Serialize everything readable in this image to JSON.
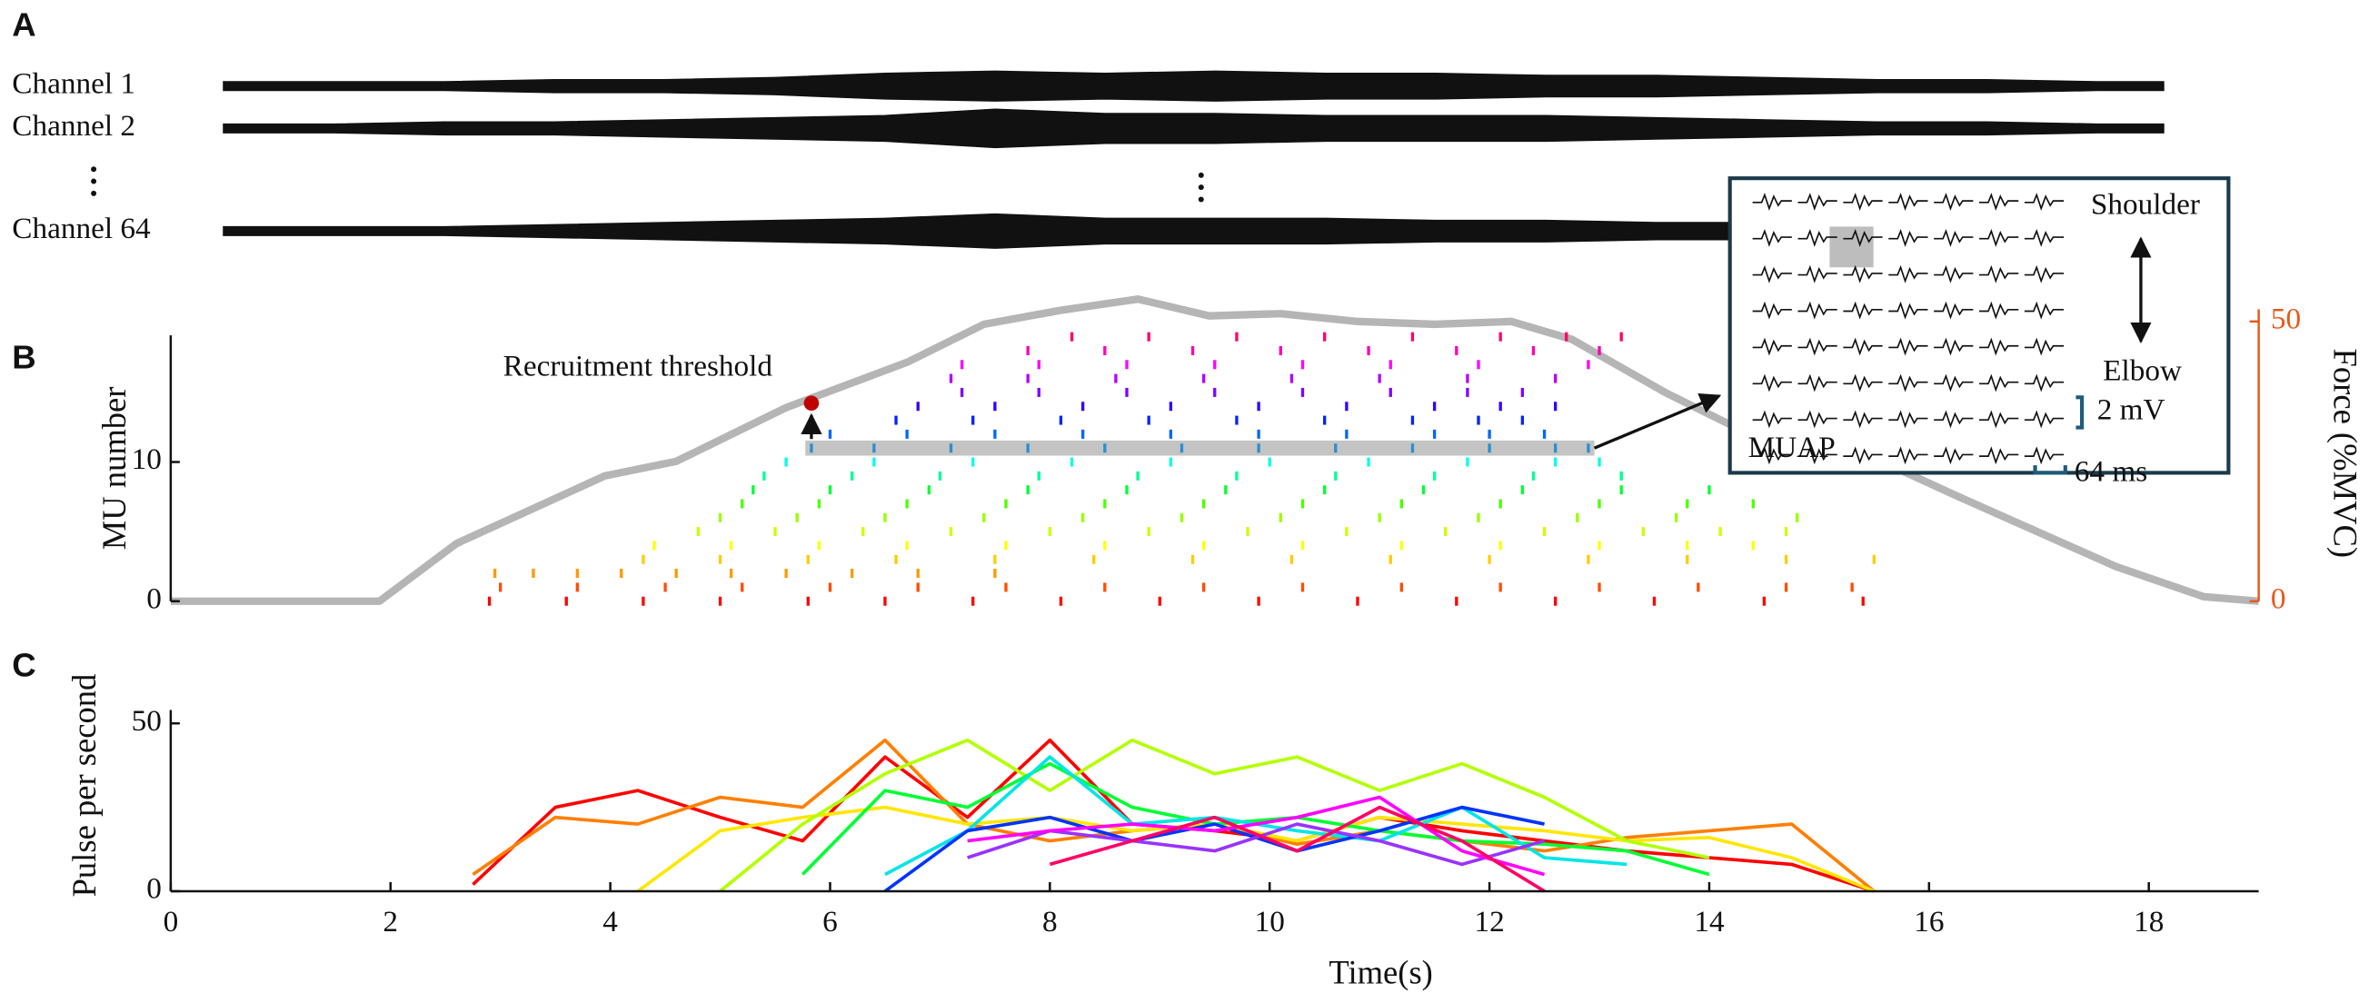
{
  "panel_labels": [
    "A",
    "B",
    "C"
  ],
  "chart_data": [
    {
      "type": "emg",
      "x": [
        0.5,
        1.5,
        2.5,
        3.5,
        4.5,
        5.5,
        6.5,
        7.5,
        8.5,
        9.5,
        10.5,
        11.5,
        12.5,
        13.5,
        14.5,
        15.5,
        16.5,
        17.5,
        18.1
      ],
      "channels": [
        {
          "name": "Channel 1",
          "envelope": [
            2,
            2,
            2,
            3,
            3,
            4,
            6,
            7,
            6,
            7,
            6,
            6,
            5,
            5,
            4,
            3,
            3,
            2,
            2
          ]
        },
        {
          "name": "Channel 2",
          "envelope": [
            2,
            2,
            3,
            3,
            4,
            5,
            6,
            9,
            7,
            7,
            6,
            6,
            6,
            5,
            4,
            3,
            3,
            2,
            2
          ]
        },
        {
          "name": "Channel 64",
          "envelope": [
            2,
            2,
            2,
            3,
            4,
            5,
            6,
            8,
            6,
            6,
            6,
            5,
            5,
            4,
            4,
            3,
            2,
            2,
            2
          ]
        }
      ]
    },
    {
      "type": "raster",
      "ylabel": "MU number",
      "y2label": "Force (%MVC)",
      "xlim": [
        0,
        19
      ],
      "ylim": [
        0,
        19.1
      ],
      "yticks": [
        0,
        10
      ],
      "y2lim": [
        0,
        54
      ],
      "y2ticks": [
        0,
        50
      ],
      "axis2_color": "#e8591a",
      "force": {
        "color": "#b5b5b5",
        "x": [
          0,
          1.9,
          2.6,
          3.95,
          4.6,
          5.6,
          6.7,
          7.4,
          8.1,
          8.8,
          9.45,
          10.1,
          10.8,
          11.5,
          12.2,
          12.75,
          13.6,
          14.3,
          15.4,
          16.3,
          17.7,
          18.5,
          19
        ],
        "values": [
          0,
          0,
          10.3,
          22.4,
          25,
          34.6,
          42.7,
          49.5,
          52,
          54,
          51,
          51.4,
          50,
          49.5,
          50,
          46.8,
          37.3,
          30.5,
          26.5,
          18.4,
          6.2,
          0.8,
          0
        ]
      },
      "annotation": "Recruitment threshold",
      "threshold": {
        "x": 5.83,
        "value": 35.4,
        "color": "#c00000"
      },
      "highlight_unit": 11,
      "units": [
        {
          "color": "#ff0000",
          "spikes": [
            2.9,
            3.6,
            4.3,
            5.0,
            5.8,
            6.5,
            7.3,
            8.1,
            9.0,
            9.9,
            10.8,
            11.7,
            12.6,
            13.5,
            14.5,
            15.4
          ]
        },
        {
          "color": "#ff4d00",
          "spikes": [
            3.0,
            3.7,
            4.5,
            5.2,
            6.0,
            6.8,
            7.6,
            8.5,
            9.4,
            10.3,
            11.2,
            12.1,
            13.0,
            13.9,
            14.7,
            15.3
          ]
        },
        {
          "color": "#ff9900",
          "spikes": [
            2.95,
            3.3,
            3.7,
            4.1,
            4.6,
            5.1,
            5.6,
            6.2,
            6.8,
            7.5
          ]
        },
        {
          "color": "#ffcc00",
          "spikes": [
            4.3,
            5.0,
            5.8,
            6.6,
            7.5,
            8.4,
            9.3,
            10.2,
            11.1,
            12.0,
            12.9,
            13.8,
            14.7,
            15.5
          ]
        },
        {
          "color": "#ffff00",
          "spikes": [
            4.4,
            5.1,
            5.9,
            6.7,
            7.6,
            8.5,
            9.4,
            10.3,
            11.2,
            12.1,
            13.0,
            13.8,
            14.4
          ]
        },
        {
          "color": "#ccff00",
          "spikes": [
            4.8,
            5.5,
            6.3,
            7.1,
            8.0,
            8.9,
            9.8,
            10.7,
            11.6,
            12.5,
            13.4,
            14.1,
            14.7
          ]
        },
        {
          "color": "#99ff00",
          "spikes": [
            5.0,
            5.7,
            6.5,
            7.4,
            8.3,
            9.2,
            10.1,
            11.0,
            11.9,
            12.8,
            13.7,
            14.8
          ]
        },
        {
          "color": "#4dff00",
          "spikes": [
            5.2,
            5.9,
            6.7,
            7.6,
            8.5,
            9.4,
            10.3,
            11.2,
            12.1,
            13.0,
            13.8,
            14.4
          ]
        },
        {
          "color": "#00ff33",
          "spikes": [
            5.3,
            6.0,
            6.9,
            7.8,
            8.7,
            9.6,
            10.5,
            11.4,
            12.3,
            13.2,
            14.0
          ]
        },
        {
          "color": "#00ff99",
          "spikes": [
            5.4,
            6.2,
            7.0,
            7.9,
            8.8,
            9.7,
            10.6,
            11.5,
            12.4,
            13.2
          ]
        },
        {
          "color": "#00ffe6",
          "spikes": [
            5.6,
            6.4,
            7.3,
            8.2,
            9.1,
            10.0,
            10.9,
            11.8,
            12.6,
            13.0
          ]
        },
        {
          "color": "#2a8fd0",
          "spikes": [
            5.83,
            6.4,
            7.1,
            7.8,
            8.5,
            9.2,
            9.9,
            10.6,
            11.3,
            12.0,
            12.6,
            12.9
          ]
        },
        {
          "color": "#0066ff",
          "spikes": [
            6.0,
            6.7,
            7.5,
            8.3,
            9.1,
            9.9,
            10.7,
            11.5,
            12.0,
            12.5
          ]
        },
        {
          "color": "#0022ff",
          "spikes": [
            6.6,
            7.3,
            8.1,
            8.9,
            9.7,
            10.5,
            11.3,
            11.9,
            12.3
          ]
        },
        {
          "color": "#3300ff",
          "spikes": [
            6.8,
            7.5,
            8.3,
            9.1,
            9.9,
            10.7,
            11.5,
            12.1,
            12.6
          ]
        },
        {
          "color": "#8000ff",
          "spikes": [
            7.2,
            7.9,
            8.7,
            9.5,
            10.3,
            11.1,
            11.8,
            12.3
          ]
        },
        {
          "color": "#b300ff",
          "spikes": [
            7.1,
            7.8,
            8.6,
            9.4,
            10.2,
            11.0,
            11.8,
            12.6
          ]
        },
        {
          "color": "#ff00ff",
          "spikes": [
            7.2,
            7.9,
            8.7,
            9.5,
            10.3,
            11.1,
            11.9,
            12.9
          ]
        },
        {
          "color": "#ff00b3",
          "spikes": [
            7.8,
            8.5,
            9.3,
            10.1,
            10.9,
            11.7,
            12.4,
            13.0
          ]
        },
        {
          "color": "#ff0066",
          "spikes": [
            8.2,
            8.9,
            9.7,
            10.5,
            11.3,
            12.1,
            12.7,
            13.2
          ]
        }
      ],
      "inset": {
        "top": "Shoulder",
        "bottom": "Elbow",
        "amplitude": "2 mV",
        "duration": "64 ms",
        "title": "MUAP"
      }
    },
    {
      "type": "line",
      "ylabel": "Pulse per second",
      "xlabel": "Time(s)",
      "xlim": [
        0,
        19
      ],
      "xticks": [
        0,
        2,
        4,
        6,
        8,
        10,
        12,
        14,
        16,
        18
      ],
      "ylim": [
        0,
        54
      ],
      "yticks": [
        0,
        50
      ],
      "x": [
        2.75,
        3.5,
        4.25,
        5,
        5.75,
        6.5,
        7.25,
        8,
        8.75,
        9.5,
        10.25,
        11,
        11.75,
        12.5,
        13.25,
        14,
        14.75,
        15.5
      ],
      "series": [
        {
          "color": "#ff0000",
          "values": [
            2,
            25,
            30,
            22,
            15,
            40,
            22,
            45,
            20,
            18,
            15,
            22,
            18,
            15,
            12,
            10,
            8,
            0
          ]
        },
        {
          "color": "#ff7f00",
          "values": [
            5,
            22,
            20,
            28,
            25,
            45,
            20,
            15,
            18,
            20,
            14,
            18,
            15,
            12,
            16,
            18,
            20,
            0
          ]
        },
        {
          "color": "#ffe600",
          "values": [
            null,
            null,
            0,
            18,
            22,
            25,
            20,
            22,
            18,
            20,
            15,
            22,
            20,
            18,
            15,
            16,
            10,
            0
          ]
        },
        {
          "color": "#b3ff00",
          "values": [
            null,
            null,
            null,
            0,
            20,
            35,
            45,
            30,
            45,
            35,
            40,
            30,
            38,
            28,
            15,
            10,
            null,
            null
          ]
        },
        {
          "color": "#00ff33",
          "values": [
            null,
            null,
            null,
            null,
            5,
            30,
            25,
            38,
            25,
            20,
            22,
            18,
            15,
            14,
            12,
            5,
            null,
            null
          ]
        },
        {
          "color": "#00e5e5",
          "values": [
            null,
            null,
            null,
            null,
            null,
            5,
            18,
            40,
            20,
            22,
            18,
            15,
            25,
            10,
            8,
            null,
            null,
            null
          ]
        },
        {
          "color": "#0033ff",
          "values": [
            null,
            null,
            null,
            null,
            null,
            0,
            18,
            22,
            15,
            20,
            12,
            18,
            25,
            20,
            null,
            null,
            null,
            null
          ]
        },
        {
          "color": "#9933ff",
          "values": [
            null,
            null,
            null,
            null,
            null,
            null,
            10,
            18,
            15,
            12,
            20,
            15,
            8,
            15,
            null,
            null,
            null,
            null
          ]
        },
        {
          "color": "#ff00ff",
          "values": [
            null,
            null,
            null,
            null,
            null,
            null,
            15,
            18,
            20,
            18,
            22,
            28,
            12,
            5,
            null,
            null,
            null,
            null
          ]
        },
        {
          "color": "#ff0066",
          "values": [
            null,
            null,
            null,
            null,
            null,
            null,
            null,
            8,
            15,
            22,
            12,
            25,
            15,
            0,
            null,
            null,
            null,
            null
          ]
        }
      ]
    }
  ]
}
